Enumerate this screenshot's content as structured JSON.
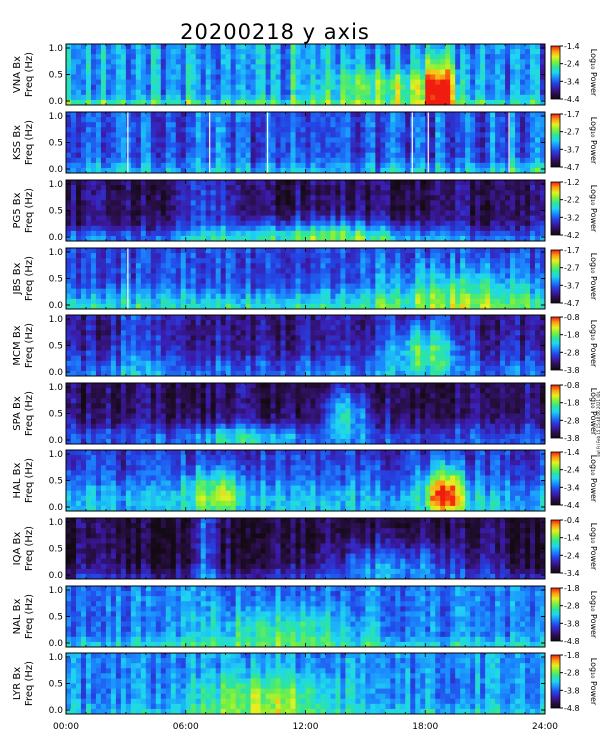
{
  "chart_data": {
    "type": "heatmap",
    "title": "20200218  y  axis",
    "stamp_text": "swl Fri Feb 15 15:48:06 2021 IDL",
    "x_ticks": [
      "00:00",
      "06:00",
      "12:00",
      "18:00",
      "24:00"
    ],
    "x_range_hours": [
      0,
      24
    ],
    "freq_ticks": [
      "1.0",
      "0.5",
      "0.0"
    ],
    "freq_range_hz": [
      0.0,
      1.0
    ],
    "colorbar_label": "Log₁₀ Power",
    "panels": [
      {
        "station": "VNA",
        "ylabel_top": "VNA  Bx",
        "ylabel_bottom": "Freq  (Hz)",
        "cbar_ticks": [
          "-1.4",
          "-2.4",
          "-3.4",
          "-4.4"
        ],
        "cbar_range": [
          -4.4,
          -1.4
        ],
        "white_gaps_hours": []
      },
      {
        "station": "KSS",
        "ylabel_top": "KSS  Bx",
        "ylabel_bottom": "Freq  (Hz)",
        "cbar_ticks": [
          "-1.7",
          "-2.7",
          "-3.7",
          "-4.7"
        ],
        "cbar_range": [
          -4.7,
          -1.7
        ],
        "white_gaps_hours": [
          3.1,
          7.2,
          10.1,
          17.35,
          18.15,
          22.2
        ]
      },
      {
        "station": "PG5",
        "ylabel_top": "PG5  Bx",
        "ylabel_bottom": "Freq  (Hz)",
        "cbar_ticks": [
          "-1.2",
          "-2.2",
          "-3.2",
          "-4.2"
        ],
        "cbar_range": [
          -4.2,
          -1.2
        ],
        "white_gaps_hours": []
      },
      {
        "station": "JBS",
        "ylabel_top": "JBS  Bx",
        "ylabel_bottom": "Freq  (Hz)",
        "cbar_ticks": [
          "-1.7",
          "-2.7",
          "-3.7",
          "-4.7"
        ],
        "cbar_range": [
          -4.7,
          -1.7
        ],
        "white_gaps_hours": [
          3.1
        ]
      },
      {
        "station": "MCM",
        "ylabel_top": "MCM  Bx",
        "ylabel_bottom": "Freq  (Hz)",
        "cbar_ticks": [
          "-0.8",
          "-1.8",
          "-2.8",
          "-3.8"
        ],
        "cbar_range": [
          -3.8,
          -0.8
        ],
        "white_gaps_hours": []
      },
      {
        "station": "SPA",
        "ylabel_top": "SPA  Bx",
        "ylabel_bottom": "Freq  (Hz)",
        "cbar_ticks": [
          "-0.8",
          "-1.8",
          "-2.8",
          "-3.8"
        ],
        "cbar_range": [
          -3.8,
          -0.8
        ],
        "white_gaps_hours": []
      },
      {
        "station": "HAL",
        "ylabel_top": "HAL  Bx",
        "ylabel_bottom": "Freq  (Hz)",
        "cbar_ticks": [
          "-1.4",
          "-2.4",
          "-3.4",
          "-4.4"
        ],
        "cbar_range": [
          -4.4,
          -1.4
        ],
        "white_gaps_hours": []
      },
      {
        "station": "IQA",
        "ylabel_top": "IQA  Bx",
        "ylabel_bottom": "Freq  (Hz)",
        "cbar_ticks": [
          "-0.4",
          "-1.4",
          "-2.4",
          "-3.4"
        ],
        "cbar_range": [
          -3.4,
          -0.4
        ],
        "white_gaps_hours": []
      },
      {
        "station": "NAL",
        "ylabel_top": "NAL  Bx",
        "ylabel_bottom": "Freq  (Hz)",
        "cbar_ticks": [
          "-1.8",
          "-2.8",
          "-3.8",
          "-4.8"
        ],
        "cbar_range": [
          -4.8,
          -1.8
        ],
        "white_gaps_hours": []
      },
      {
        "station": "LYR",
        "ylabel_top": "LYR  Bx",
        "ylabel_bottom": "Freq  (Hz)",
        "cbar_ticks": [
          "-1.8",
          "-2.8",
          "-3.8",
          "-4.8"
        ],
        "cbar_range": [
          -4.8,
          -1.8
        ],
        "white_gaps_hours": []
      }
    ]
  },
  "colors": {
    "background": "#ffffff",
    "axis": "#000000",
    "colormap": [
      "#140a14",
      "#2a0f4a",
      "#3b1aa8",
      "#2346e6",
      "#1b8cff",
      "#1fd6f0",
      "#2ee59a",
      "#7ef03a",
      "#e8f020",
      "#ff9a10",
      "#f01c10"
    ]
  }
}
